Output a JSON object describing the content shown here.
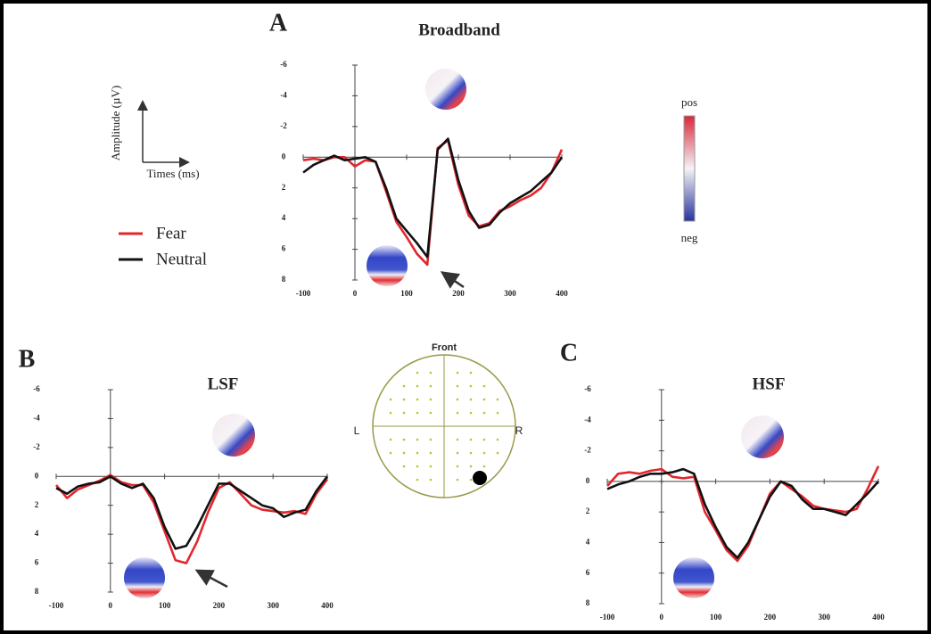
{
  "chart_data": [
    {
      "type": "line",
      "panel": "A",
      "title": "Broadband",
      "x": [
        -100,
        -80,
        -60,
        -40,
        -20,
        0,
        20,
        40,
        60,
        80,
        100,
        120,
        140,
        160,
        180,
        200,
        220,
        240,
        260,
        280,
        300,
        320,
        340,
        360,
        380,
        400
      ],
      "series": [
        {
          "name": "Fear",
          "color": "#e3262d",
          "values": [
            0.2,
            0.1,
            0.2,
            0,
            0,
            0.6,
            0.2,
            0.3,
            2.2,
            4.2,
            5.2,
            6.3,
            7,
            -0.6,
            -1.1,
            1.8,
            3.8,
            4.5,
            4.3,
            3.5,
            3.2,
            2.8,
            2.5,
            2,
            1,
            -0.5
          ]
        },
        {
          "name": "Neutral",
          "color": "#111111",
          "values": [
            1,
            0.5,
            0.2,
            -0.1,
            0.2,
            0.1,
            0,
            0.3,
            2,
            4,
            4.8,
            5.6,
            6.5,
            -0.5,
            -1.2,
            1.5,
            3.5,
            4.6,
            4.4,
            3.6,
            3,
            2.6,
            2.2,
            1.6,
            1,
            0
          ]
        }
      ],
      "xlim": [
        -100,
        400
      ],
      "xticks": [
        -100,
        0,
        100,
        200,
        300,
        400
      ],
      "ylim": [
        -6,
        8
      ],
      "yticks": [
        -6,
        -4,
        -2,
        0,
        2,
        4,
        6,
        8
      ],
      "y_inverted": true
    },
    {
      "type": "line",
      "panel": "B",
      "title": "LSF",
      "x": [
        -100,
        -80,
        -60,
        -40,
        -20,
        0,
        20,
        40,
        60,
        80,
        100,
        120,
        140,
        160,
        180,
        200,
        220,
        240,
        260,
        280,
        300,
        320,
        340,
        360,
        380,
        400
      ],
      "series": [
        {
          "name": "Fear",
          "color": "#e3262d",
          "values": [
            0.6,
            1.5,
            0.9,
            0.6,
            0.3,
            -0.1,
            0.4,
            0.6,
            0.6,
            1.8,
            3.8,
            5.8,
            6,
            4.5,
            2.5,
            0.8,
            0.4,
            1.2,
            2,
            2.3,
            2.4,
            2.5,
            2.4,
            2.6,
            1.2,
            0.2
          ]
        },
        {
          "name": "Neutral",
          "color": "#111111",
          "values": [
            0.8,
            1.2,
            0.7,
            0.5,
            0.4,
            0,
            0.5,
            0.8,
            0.5,
            1.5,
            3.5,
            5,
            4.8,
            3.5,
            2,
            0.5,
            0.5,
            1,
            1.5,
            2,
            2.2,
            2.8,
            2.5,
            2.3,
            1,
            0
          ]
        }
      ],
      "xlim": [
        -100,
        400
      ],
      "xticks": [
        -100,
        0,
        100,
        200,
        300,
        400
      ],
      "ylim": [
        -6,
        8
      ],
      "yticks": [
        -6,
        -4,
        -2,
        0,
        2,
        4,
        6,
        8
      ],
      "y_inverted": true
    },
    {
      "type": "line",
      "panel": "C",
      "title": "HSF",
      "x": [
        -100,
        -80,
        -60,
        -40,
        -20,
        0,
        20,
        40,
        60,
        80,
        100,
        120,
        140,
        160,
        180,
        200,
        220,
        240,
        260,
        280,
        300,
        320,
        340,
        360,
        380,
        400
      ],
      "series": [
        {
          "name": "Fear",
          "color": "#e3262d",
          "values": [
            0.3,
            -0.5,
            -0.6,
            -0.5,
            -0.7,
            -0.8,
            -0.3,
            -0.2,
            -0.3,
            2,
            3.2,
            4.5,
            5.2,
            4.2,
            2.5,
            0.8,
            0,
            0.5,
            1,
            1.6,
            1.8,
            1.9,
            2,
            1.8,
            0.5,
            -1
          ]
        },
        {
          "name": "Neutral",
          "color": "#111111",
          "values": [
            0.5,
            0.2,
            0,
            -0.3,
            -0.5,
            -0.5,
            -0.6,
            -0.8,
            -0.5,
            1.5,
            3,
            4.3,
            5,
            4,
            2.5,
            1,
            0,
            0.3,
            1.2,
            1.8,
            1.8,
            2,
            2.2,
            1.5,
            0.8,
            0
          ]
        }
      ],
      "xlim": [
        -100,
        400
      ],
      "xticks": [
        -100,
        0,
        100,
        200,
        300,
        400
      ],
      "ylim": [
        -6,
        8
      ],
      "yticks": [
        -6,
        -4,
        -2,
        0,
        2,
        4,
        6,
        8
      ],
      "y_inverted": true
    }
  ],
  "axis_key": {
    "y_label": "Amplitude (µV)",
    "x_label": "Times (ms)"
  },
  "colorbar": {
    "top": "pos",
    "bottom": "neg"
  },
  "head_map": {
    "front": "Front",
    "left": "L",
    "right": "R"
  }
}
